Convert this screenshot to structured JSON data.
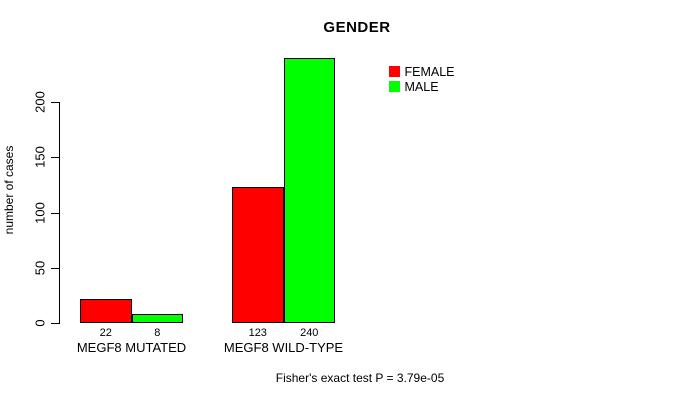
{
  "title": "GENDER",
  "y_axis": {
    "label": "number of cases",
    "tick_labels": [
      "0",
      "50",
      "100",
      "150",
      "200"
    ]
  },
  "legend": {
    "items": [
      {
        "label": "FEMALE",
        "color": "#ff0000"
      },
      {
        "label": "MALE",
        "color": "#00ff00"
      }
    ]
  },
  "footer": "Fisher's exact test P = 3.79e-05",
  "chart_data": {
    "type": "bar",
    "title": "GENDER",
    "ylabel": "number of cases",
    "categories": [
      "MEGF8 MUTATED",
      "MEGF8 WILD-TYPE"
    ],
    "series": [
      {
        "name": "FEMALE",
        "color": "#ff0000",
        "values": [
          22,
          123
        ]
      },
      {
        "name": "MALE",
        "color": "#00ff00",
        "values": [
          8,
          240
        ]
      }
    ],
    "bar_value_labels": true,
    "yticks": [
      0,
      50,
      100,
      150,
      200
    ],
    "ylim": [
      0,
      245
    ],
    "grid": false,
    "legend_position": "top-right",
    "annotation": "Fisher's exact test P = 3.79e-05",
    "bar_border_color": "#000000"
  }
}
